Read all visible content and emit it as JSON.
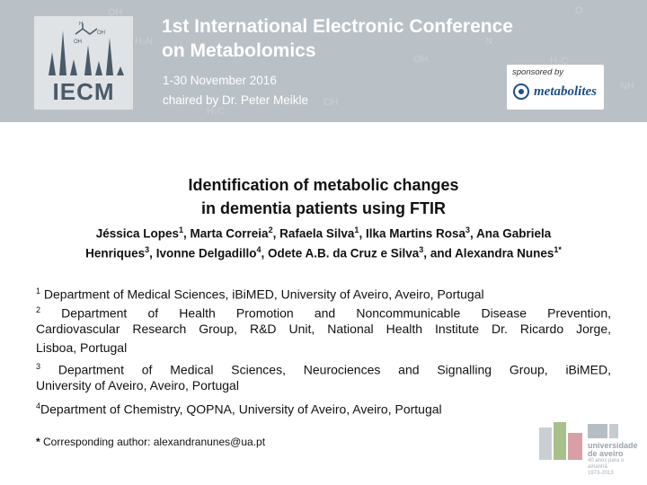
{
  "banner": {
    "title_line1": "1st International Electronic Conference",
    "title_line2": "on Metabolomics",
    "dates": "1-30 November 2016",
    "chair": "chaired by Dr. Peter Meikle",
    "logo_text": "IECM",
    "sponsor_label": "sponsored by",
    "sponsor_name": "metabolites",
    "background_color": "#b9c0c6"
  },
  "paper": {
    "title_line1": "Identification of metabolic changes",
    "title_line2": "in dementia patients using FTIR",
    "authors_line1": [
      {
        "name": "Jéssica Lopes",
        "sup": "1"
      },
      {
        "name": "Marta Correia",
        "sup": "2"
      },
      {
        "name": "Rafaela Silva",
        "sup": "1"
      },
      {
        "name": "Ilka Martins Rosa",
        "sup": "3"
      },
      {
        "name": "Ana Gabriela",
        "sup": ""
      }
    ],
    "authors_line2": [
      {
        "name": "Henriques",
        "sup": "3"
      },
      {
        "name": "Ivonne Delgadillo",
        "sup": "4"
      },
      {
        "name": "Odete A.B. da Cruz e Silva",
        "sup": "3"
      },
      {
        "name": "and Alexandra Nunes",
        "sup": "1*"
      }
    ],
    "affiliations": {
      "a1_num": "1",
      "a1": "Department of Medical Sciences, iBiMED, University of Aveiro, Aveiro, Portugal",
      "a2_num": "2",
      "a2_l1": "Department of Health Promotion and Noncommunicable Disease Prevention,",
      "a2_l2": "Cardiovascular Research Group, R&D Unit, National Health Institute Dr. Ricardo Jorge,",
      "a2_l3": "Lisboa, Portugal",
      "a3_num": "3",
      "a3_l1": "Department of Medical Sciences, Neurociences and Signalling Group, iBiMED,",
      "a3_l2": "University of Aveiro, Aveiro, Portugal",
      "a4_num": "4",
      "a4": "Department of Chemistry, QOPNA, University of Aveiro, Aveiro, Portugal"
    },
    "corresponding_mark": "*",
    "corresponding": "Corresponding author: alexandranunes@ua.pt"
  },
  "university": {
    "name_line1": "universidade",
    "name_line2": "de aveiro",
    "tagline1": "40 anos para o amanhã",
    "tagline2": "1973-2013"
  }
}
